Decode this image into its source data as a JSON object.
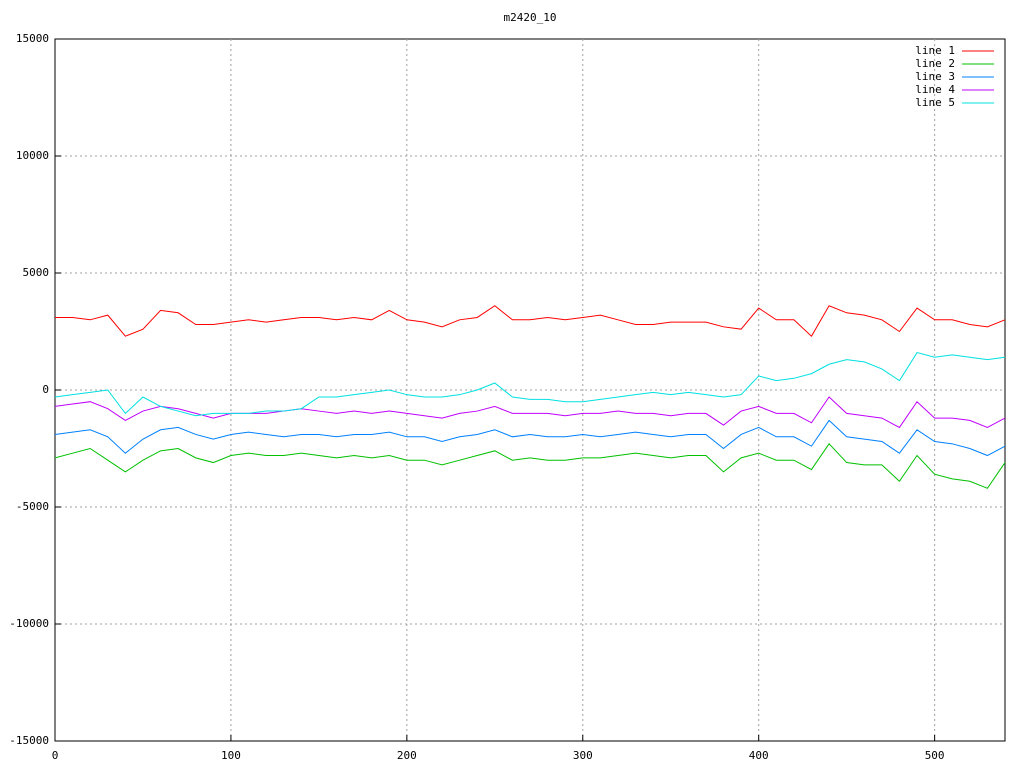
{
  "chart_data": {
    "type": "line",
    "title": "m2420_10",
    "x": [
      0,
      10,
      20,
      30,
      40,
      50,
      60,
      70,
      80,
      90,
      100,
      110,
      120,
      130,
      140,
      150,
      160,
      170,
      180,
      190,
      200,
      210,
      220,
      230,
      240,
      250,
      260,
      270,
      280,
      290,
      300,
      310,
      320,
      330,
      340,
      350,
      360,
      370,
      380,
      390,
      400,
      410,
      420,
      430,
      440,
      450,
      460,
      470,
      480,
      490,
      500,
      510,
      520,
      530,
      540
    ],
    "series": [
      {
        "name": "line 1",
        "color": "#ff0000",
        "values": [
          3100,
          3100,
          3000,
          3200,
          2300,
          2600,
          3400,
          3300,
          2800,
          2800,
          2900,
          3000,
          2900,
          3000,
          3100,
          3100,
          3000,
          3100,
          3000,
          3400,
          3000,
          2900,
          2700,
          3000,
          3100,
          3600,
          3000,
          3000,
          3100,
          3000,
          3100,
          3200,
          3000,
          2800,
          2800,
          2900,
          2900,
          2900,
          2700,
          2600,
          3500,
          3000,
          3000,
          2300,
          3600,
          3300,
          3200,
          3000,
          2500,
          3500,
          3000,
          3000,
          2800,
          2700,
          3000
        ]
      },
      {
        "name": "line 2",
        "color": "#00c000",
        "values": [
          -2900,
          -2700,
          -2500,
          -3000,
          -3500,
          -3000,
          -2600,
          -2500,
          -2900,
          -3100,
          -2800,
          -2700,
          -2800,
          -2800,
          -2700,
          -2800,
          -2900,
          -2800,
          -2900,
          -2800,
          -3000,
          -3000,
          -3200,
          -3000,
          -2800,
          -2600,
          -3000,
          -2900,
          -3000,
          -3000,
          -2900,
          -2900,
          -2800,
          -2700,
          -2800,
          -2900,
          -2800,
          -2800,
          -3500,
          -2900,
          -2700,
          -3000,
          -3000,
          -3400,
          -2300,
          -3100,
          -3200,
          -3200,
          -3900,
          -2800,
          -3600,
          -3800,
          -3900,
          -4200,
          -3100
        ]
      },
      {
        "name": "line 3",
        "color": "#0080ff",
        "values": [
          -1900,
          -1800,
          -1700,
          -2000,
          -2700,
          -2100,
          -1700,
          -1600,
          -1900,
          -2100,
          -1900,
          -1800,
          -1900,
          -2000,
          -1900,
          -1900,
          -2000,
          -1900,
          -1900,
          -1800,
          -2000,
          -2000,
          -2200,
          -2000,
          -1900,
          -1700,
          -2000,
          -1900,
          -2000,
          -2000,
          -1900,
          -2000,
          -1900,
          -1800,
          -1900,
          -2000,
          -1900,
          -1900,
          -2500,
          -1900,
          -1600,
          -2000,
          -2000,
          -2400,
          -1300,
          -2000,
          -2100,
          -2200,
          -2700,
          -1700,
          -2200,
          -2300,
          -2500,
          -2800,
          -2400
        ]
      },
      {
        "name": "line 4",
        "color": "#c000ff",
        "values": [
          -700,
          -600,
          -500,
          -800,
          -1300,
          -900,
          -700,
          -800,
          -1000,
          -1200,
          -1000,
          -1000,
          -1000,
          -900,
          -800,
          -900,
          -1000,
          -900,
          -1000,
          -900,
          -1000,
          -1100,
          -1200,
          -1000,
          -900,
          -700,
          -1000,
          -1000,
          -1000,
          -1100,
          -1000,
          -1000,
          -900,
          -1000,
          -1000,
          -1100,
          -1000,
          -1000,
          -1500,
          -900,
          -700,
          -1000,
          -1000,
          -1400,
          -300,
          -1000,
          -1100,
          -1200,
          -1600,
          -500,
          -1200,
          -1200,
          -1300,
          -1600,
          -1200
        ]
      },
      {
        "name": "line 5",
        "color": "#00e0e0",
        "values": [
          -300,
          -200,
          -100,
          0,
          -1000,
          -300,
          -700,
          -900,
          -1100,
          -1000,
          -1000,
          -1000,
          -900,
          -900,
          -800,
          -300,
          -300,
          -200,
          -100,
          0,
          -200,
          -300,
          -300,
          -200,
          0,
          300,
          -300,
          -400,
          -400,
          -500,
          -500,
          -400,
          -300,
          -200,
          -100,
          -200,
          -100,
          -200,
          -300,
          -200,
          600,
          400,
          500,
          700,
          1100,
          1300,
          1200,
          900,
          400,
          1600,
          1400,
          1500,
          1400,
          1300,
          1400
        ]
      }
    ],
    "xlim": [
      0,
      540
    ],
    "xticks": [
      0,
      100,
      200,
      300,
      400,
      500
    ],
    "ylim": [
      -15000,
      15000
    ],
    "yticks": [
      -15000,
      -10000,
      -5000,
      0,
      5000,
      10000,
      15000
    ],
    "grid": true,
    "legend": "top-right"
  }
}
